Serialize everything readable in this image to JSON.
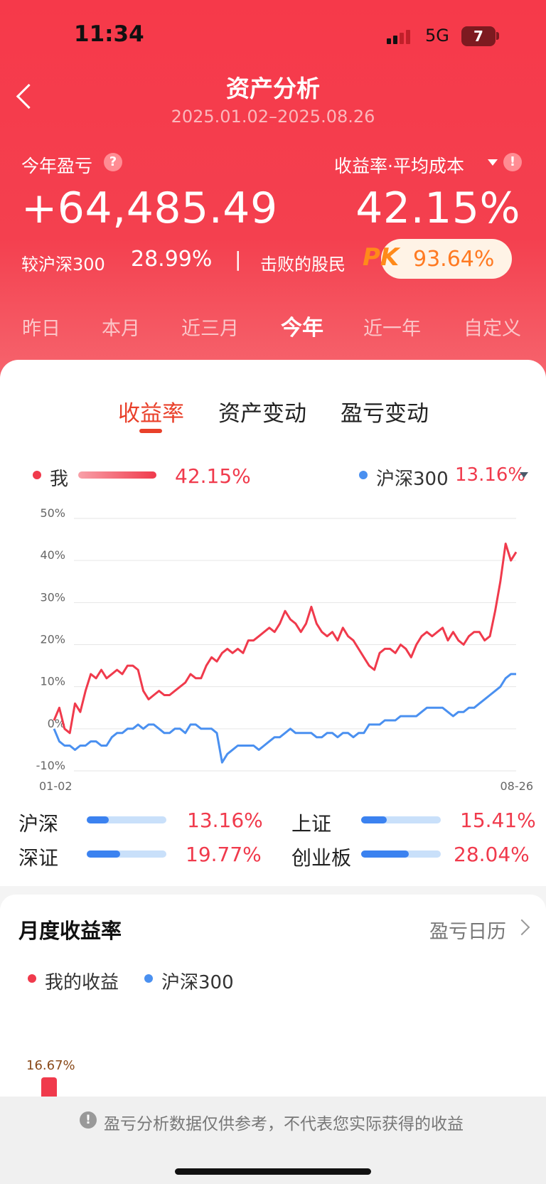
{
  "status": {
    "time": "11:34",
    "network": "5G",
    "battery": "7"
  },
  "header": {
    "title": "资产分析",
    "date_range": "2025.01.02–2025.08.26"
  },
  "summary": {
    "profit_label": "今年盈亏",
    "profit_value": "+64,485.49",
    "rate_label": "收益率·平均成本",
    "rate_value": "42.15%",
    "compare_label": "较沪深300",
    "compare_value": "28.99%",
    "separator": "|",
    "beat_label": "击败的股民",
    "pk_label": "PK",
    "beat_value": "93.64%"
  },
  "period_tabs": [
    "昨日",
    "本月",
    "近三月",
    "今年",
    "近一年",
    "自定义"
  ],
  "active_period": "今年",
  "chart_tabs": [
    "收益率",
    "资产变动",
    "盈亏变动"
  ],
  "active_chart_tab": "收益率",
  "legend": {
    "me_label": "我",
    "me_value": "42.15%",
    "bench_label": "沪深300",
    "bench_value": "13.16%"
  },
  "chart_data": {
    "type": "line",
    "x_start": "01-02",
    "x_end": "08-26",
    "ylim": [
      -10,
      50
    ],
    "yticks": [
      "50%",
      "40%",
      "30%",
      "20%",
      "10%",
      "0%",
      "-10%"
    ],
    "series": [
      {
        "name": "我",
        "color": "#f03a4c",
        "values": [
          2,
          5,
          0,
          -1,
          6,
          4,
          9,
          13,
          12,
          14,
          12,
          13,
          14,
          13,
          15,
          15,
          14,
          9,
          7,
          8,
          9,
          8,
          8,
          9,
          10,
          11,
          13,
          12,
          12,
          15,
          17,
          16,
          18,
          19,
          18,
          19,
          18,
          21,
          21,
          22,
          23,
          24,
          23,
          25,
          28,
          26,
          25,
          23,
          25,
          29,
          25,
          23,
          22,
          23,
          21,
          24,
          22,
          21,
          19,
          17,
          15,
          14,
          18,
          19,
          19,
          18,
          20,
          19,
          17,
          20,
          22,
          23,
          22,
          23,
          24,
          21,
          23,
          21,
          20,
          22,
          23,
          23,
          21,
          22,
          28,
          35,
          44,
          40,
          42
        ]
      },
      {
        "name": "沪深300",
        "color": "#4a90f0",
        "values": [
          0,
          -3,
          -4,
          -4,
          -5,
          -4,
          -4,
          -3,
          -3,
          -4,
          -4,
          -2,
          -1,
          -1,
          0,
          0,
          1,
          0,
          1,
          1,
          0,
          -1,
          -1,
          0,
          0,
          -1,
          1,
          1,
          0,
          0,
          0,
          -1,
          -8,
          -6,
          -5,
          -4,
          -4,
          -4,
          -4,
          -5,
          -4,
          -3,
          -2,
          -2,
          -1,
          0,
          -1,
          -1,
          -1,
          -1,
          -2,
          -2,
          -1,
          -1,
          -2,
          -1,
          -1,
          -2,
          -1,
          -1,
          1,
          1,
          1,
          2,
          2,
          2,
          3,
          3,
          3,
          3,
          4,
          5,
          5,
          5,
          5,
          4,
          3,
          4,
          4,
          5,
          5,
          6,
          7,
          8,
          9,
          10,
          12,
          13,
          13
        ]
      }
    ]
  },
  "indices": [
    {
      "name": "沪深",
      "value": "13.16%",
      "fill": 0.28
    },
    {
      "name": "上证",
      "value": "15.41%",
      "fill": 0.32
    },
    {
      "name": "深证",
      "value": "19.77%",
      "fill": 0.42
    },
    {
      "name": "创业板",
      "value": "28.04%",
      "fill": 0.6
    }
  ],
  "monthly": {
    "title": "月度收益率",
    "calendar_link": "盈亏日历",
    "legend_me": "我的收益",
    "legend_bench": "沪深300",
    "first_bar_value": "16.67%"
  },
  "footer_note": "盈亏分析数据仅供参考，不代表您实际获得的收益",
  "colors": {
    "brand_red": "#f6394a",
    "accent": "#e9402a",
    "bench_blue": "#4a90f0"
  }
}
